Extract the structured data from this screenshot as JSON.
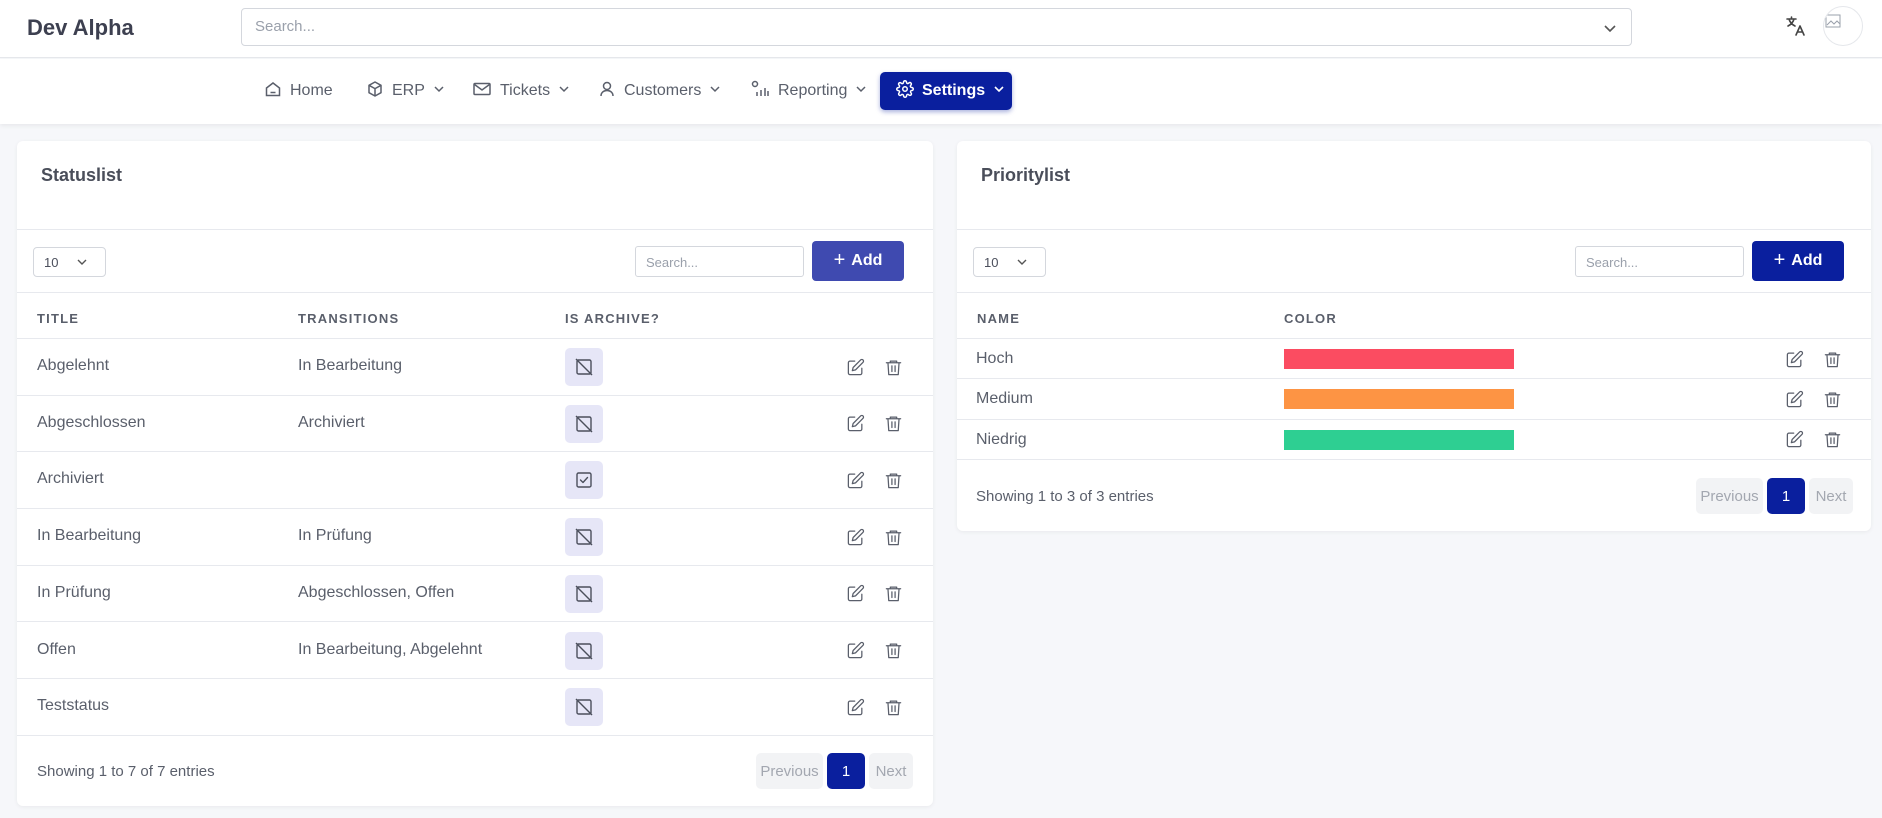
{
  "app": {
    "brand": "Dev Alpha"
  },
  "header": {
    "search_placeholder": "Search..."
  },
  "nav": {
    "home": "Home",
    "erp": "ERP",
    "tickets": "Tickets",
    "customers": "Customers",
    "reporting": "Reporting",
    "settings": "Settings"
  },
  "statuslist": {
    "title": "Statuslist",
    "page_size": "10",
    "search_placeholder": "Search...",
    "add_label": "Add",
    "columns": {
      "title": "TITLE",
      "transitions": "TRANSITIONS",
      "is_archive": "IS ARCHIVE?"
    },
    "rows": [
      {
        "title": "Abgelehnt",
        "transitions": "In Bearbeitung",
        "is_archive": false
      },
      {
        "title": "Abgeschlossen",
        "transitions": "Archiviert",
        "is_archive": false
      },
      {
        "title": "Archiviert",
        "transitions": "",
        "is_archive": true
      },
      {
        "title": "In Bearbeitung",
        "transitions": "In Prüfung",
        "is_archive": false
      },
      {
        "title": "In Prüfung",
        "transitions": "Abgeschlossen, Offen",
        "is_archive": false
      },
      {
        "title": "Offen",
        "transitions": "In Bearbeitung, Abgelehnt",
        "is_archive": false
      },
      {
        "title": "Teststatus",
        "transitions": "",
        "is_archive": false
      }
    ],
    "footer": "Showing 1 to 7 of 7 entries",
    "pagination": {
      "previous": "Previous",
      "current": "1",
      "next": "Next"
    },
    "add_color": "#3f4ab0"
  },
  "prioritylist": {
    "title": "Prioritylist",
    "page_size": "10",
    "search_placeholder": "Search...",
    "add_label": "Add",
    "columns": {
      "name": "NAME",
      "color": "COLOR"
    },
    "rows": [
      {
        "name": "Hoch",
        "color": "#fb4c61"
      },
      {
        "name": "Medium",
        "color": "#fd9444"
      },
      {
        "name": "Niedrig",
        "color": "#2ecf92"
      }
    ],
    "footer": "Showing 1 to 3 of 3 entries",
    "pagination": {
      "previous": "Previous",
      "current": "1",
      "next": "Next"
    },
    "add_color": "#0a1f9e"
  },
  "colors": {
    "accent": "#0a1f9e"
  }
}
